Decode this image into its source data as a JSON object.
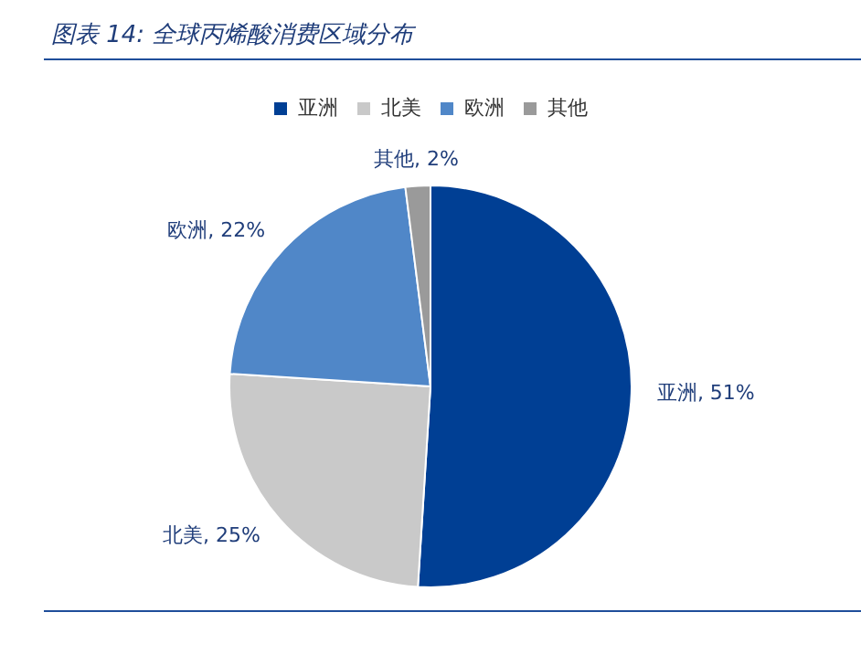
{
  "chart_data": {
    "type": "pie",
    "title": "图表 14:  全球丙烯酸消费区域分布",
    "categories": [
      "亚洲",
      "北美",
      "欧洲",
      "其他"
    ],
    "values": [
      51,
      25,
      22,
      2
    ],
    "value_labels": [
      "亚洲, 51%",
      "北美, 25%",
      "欧洲, 22%",
      "其他, 2%"
    ],
    "colors": [
      "#003f94",
      "#c9c9c9",
      "#5087c8",
      "#9a9a9a"
    ],
    "legend": "top"
  }
}
